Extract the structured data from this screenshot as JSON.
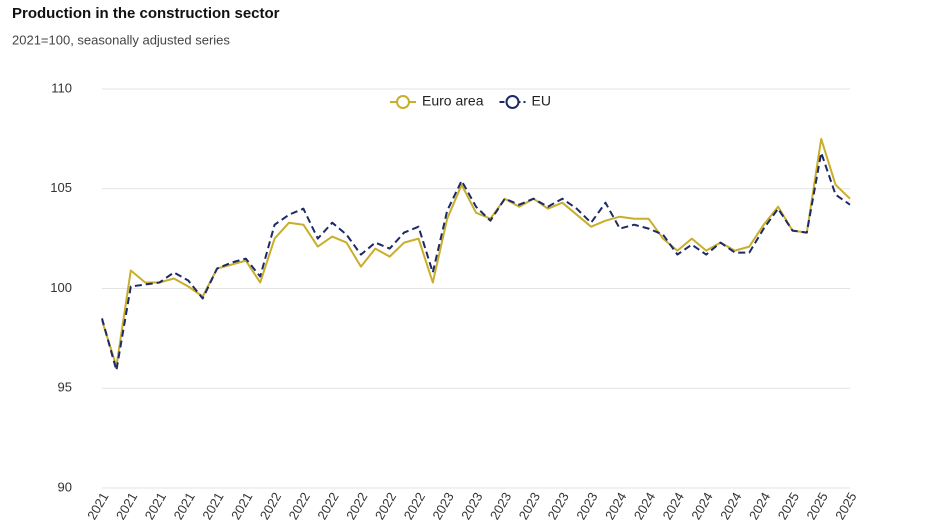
{
  "chart_data": {
    "type": "line",
    "title": "Production in the construction sector",
    "subtitle": "2021=100, seasonally adjusted series",
    "categories": [
      "2021",
      null,
      "2021",
      null,
      "2021",
      null,
      "2021",
      null,
      "2021",
      null,
      "2021",
      null,
      "2022",
      null,
      "2022",
      null,
      "2022",
      null,
      "2022",
      null,
      "2022",
      null,
      "2022",
      null,
      "2023",
      null,
      "2023",
      null,
      "2023",
      null,
      "2023",
      null,
      "2023",
      null,
      "2023",
      null,
      "2024",
      null,
      "2024",
      null,
      "2024",
      null,
      "2024",
      null,
      "2024",
      null,
      "2024",
      null,
      "2025",
      null,
      "2025",
      null,
      "2025"
    ],
    "series": [
      {
        "name": "Euro area",
        "color": "#c9ae2c",
        "dash": false,
        "values": [
          98.4,
          96.1,
          100.9,
          100.3,
          100.3,
          100.5,
          100.1,
          99.6,
          101.0,
          101.2,
          101.4,
          100.3,
          102.5,
          103.3,
          103.2,
          102.1,
          102.6,
          102.3,
          101.1,
          102.0,
          101.6,
          102.3,
          102.5,
          100.3,
          103.5,
          105.2,
          103.8,
          103.5,
          104.5,
          104.1,
          104.5,
          104.0,
          104.3,
          103.7,
          103.1,
          103.4,
          103.6,
          103.5,
          103.5,
          102.5,
          101.9,
          102.5,
          101.9,
          102.3,
          101.9,
          102.1,
          103.2,
          104.1,
          102.9,
          102.8,
          107.5,
          105.2,
          104.5
        ]
      },
      {
        "name": "EU",
        "color": "#1c2a66",
        "dash": true,
        "values": [
          98.5,
          95.9,
          100.1,
          100.2,
          100.3,
          100.8,
          100.4,
          99.5,
          101.0,
          101.3,
          101.5,
          100.6,
          103.2,
          103.7,
          104.0,
          102.5,
          103.3,
          102.7,
          101.7,
          102.3,
          102.0,
          102.8,
          103.1,
          100.8,
          103.9,
          105.4,
          104.1,
          103.4,
          104.5,
          104.2,
          104.5,
          104.1,
          104.5,
          104.0,
          103.3,
          104.3,
          103.0,
          103.2,
          103.0,
          102.7,
          101.7,
          102.2,
          101.7,
          102.3,
          101.8,
          101.8,
          103.0,
          104.0,
          102.9,
          102.8,
          106.8,
          104.7,
          104.2
        ]
      }
    ],
    "ylim": [
      90,
      110
    ],
    "yticks": [
      90,
      95,
      100,
      105,
      110
    ],
    "grid": true,
    "legend": "top"
  }
}
